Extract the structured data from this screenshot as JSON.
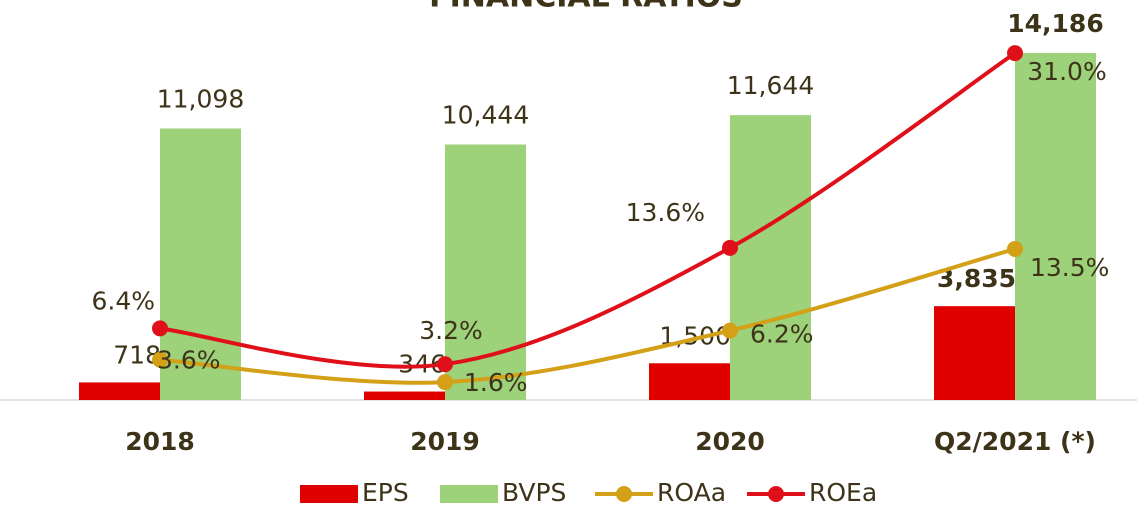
{
  "chart_data": {
    "type": "bar",
    "title": "FINANCIAL RATIOS",
    "categories": [
      "2018",
      "2019",
      "2020",
      "Q2/2021 (*)"
    ],
    "ylim": [
      0,
      16350
    ],
    "y2lim": [
      0,
      35.75
    ],
    "series": [
      {
        "name": "EPS",
        "color": "#e00000",
        "type": "bar",
        "values": [
          718,
          346,
          1500,
          3835
        ],
        "value_labels": [
          "718",
          "346",
          "1,500",
          "3,835"
        ]
      },
      {
        "name": "BVPS",
        "color": "#9dd17a",
        "type": "bar",
        "values": [
          11098,
          10444,
          11644,
          14186
        ],
        "value_labels": [
          "11,098",
          "10,444",
          "11,644",
          "14,186"
        ]
      },
      {
        "name": "ROAa",
        "color": "#d4a017",
        "type": "line",
        "axis": "y2",
        "values": [
          3.6,
          1.6,
          6.2,
          13.5
        ],
        "value_labels": [
          "3.6%",
          "1.6%",
          "6.2%",
          "13.5%"
        ]
      },
      {
        "name": "ROEa",
        "color": "#e0101a",
        "type": "line",
        "axis": "y2",
        "values": [
          6.4,
          3.2,
          13.6,
          31.0
        ],
        "value_labels": [
          "6.4%",
          "3.2%",
          "13.6%",
          "31.0%"
        ]
      }
    ]
  }
}
